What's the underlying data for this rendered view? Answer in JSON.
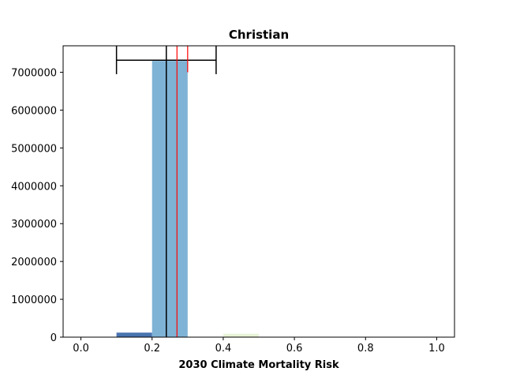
{
  "chart_data": {
    "type": "bar",
    "title": "Christian",
    "xlabel": "2030 Climate Mortality Risk",
    "ylabel": "",
    "xlim": [
      -0.05,
      1.05
    ],
    "ylim": [
      0,
      7700000
    ],
    "xticks": [
      0.0,
      0.2,
      0.4,
      0.6,
      0.8,
      1.0
    ],
    "xtick_labels": [
      "0.0",
      "0.2",
      "0.4",
      "0.6",
      "0.8",
      "1.0"
    ],
    "yticks": [
      0,
      1000000,
      2000000,
      3000000,
      4000000,
      5000000,
      6000000,
      7000000
    ],
    "ytick_labels": [
      "0",
      "1000000",
      "2000000",
      "3000000",
      "4000000",
      "5000000",
      "6000000",
      "7000000"
    ],
    "bars": [
      {
        "x0": 0.1,
        "x1": 0.2,
        "value": 120000,
        "color": "#4a74b0"
      },
      {
        "x0": 0.2,
        "x1": 0.3,
        "value": 7300000,
        "color": "#7fb3d5"
      },
      {
        "x0": 0.4,
        "x1": 0.5,
        "value": 90000,
        "color": "#e8f4d8"
      }
    ],
    "mean_line": {
      "x": 0.24,
      "color": "#000000"
    },
    "range_bar": {
      "x_low": 0.1,
      "x_high": 0.38,
      "y": 7320000,
      "cap_low": 6950000,
      "cap_high": 7700000,
      "color": "#000000"
    },
    "reference_line": {
      "x": 0.27,
      "color": "#ff0000"
    },
    "reference_tick": {
      "x": 0.3,
      "y_low": 7000000,
      "y_high": 7700000,
      "color": "#ff0000"
    }
  }
}
